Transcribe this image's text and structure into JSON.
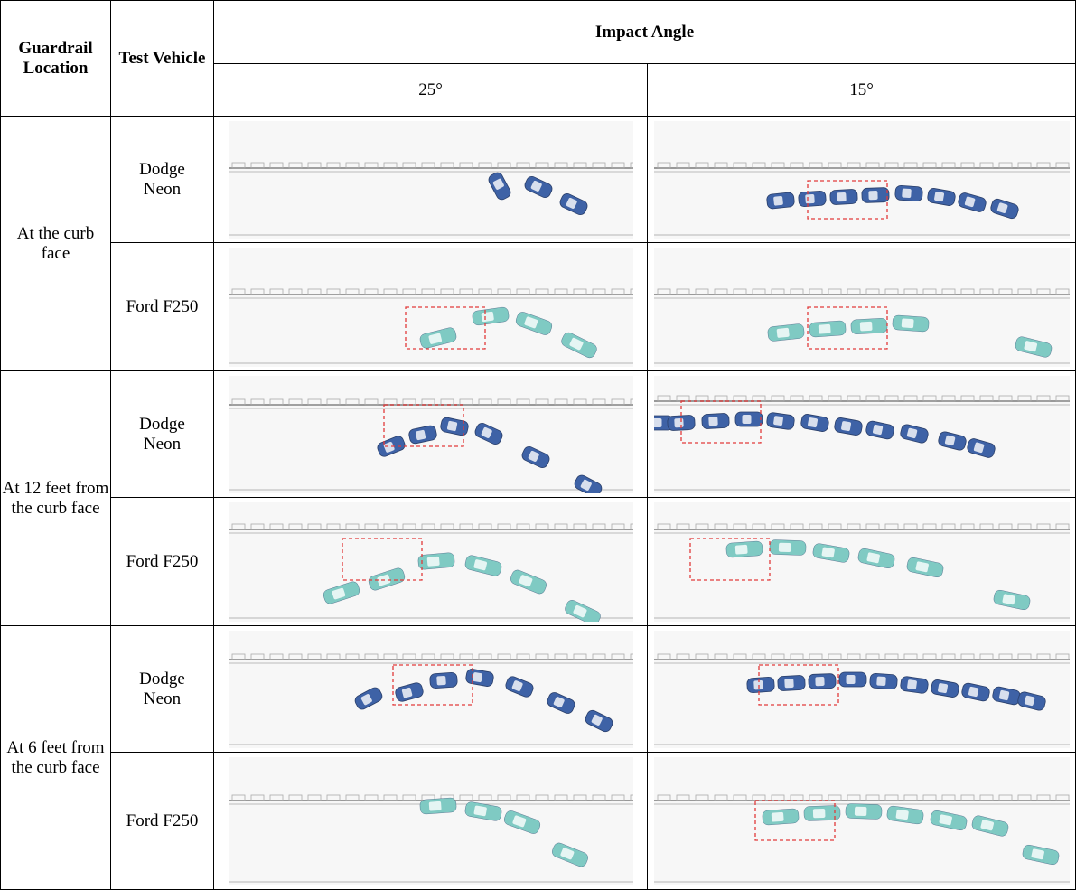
{
  "table": {
    "headers": {
      "guardrail_location": "Guardrail Location",
      "test_vehicle": "Test Vehicle",
      "impact_angle": "Impact Angle",
      "angles": [
        "25°",
        "15°"
      ]
    },
    "rows": [
      {
        "location": "At the curb face",
        "vehicles": [
          "Dodge Neon",
          "Ford F250"
        ]
      },
      {
        "location": "At 12 feet from the curb face",
        "vehicles": [
          "Dodge Neon",
          "Ford F250"
        ]
      },
      {
        "location": "At 6 feet from the curb face",
        "vehicles": [
          "Dodge Neon",
          "Ford F250"
        ]
      }
    ]
  }
}
